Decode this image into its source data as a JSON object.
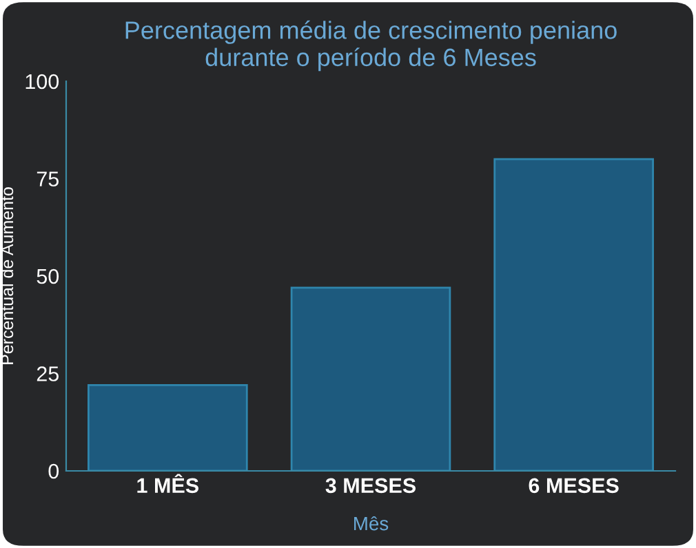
{
  "chart_data": {
    "type": "bar",
    "title": "Percentagem média de crescimento peniano\ndurante o período de 6 Meses",
    "xlabel": "Mês",
    "ylabel": "Percentual de Aumento",
    "categories": [
      "1 MÊS",
      "3 MESES",
      "6 MESES"
    ],
    "values": [
      22,
      47,
      80
    ],
    "color": "#1d5a7e",
    "ylim": [
      0,
      100
    ],
    "yticks": [
      0,
      25,
      50,
      75,
      100
    ],
    "grid": false,
    "legend": false
  }
}
